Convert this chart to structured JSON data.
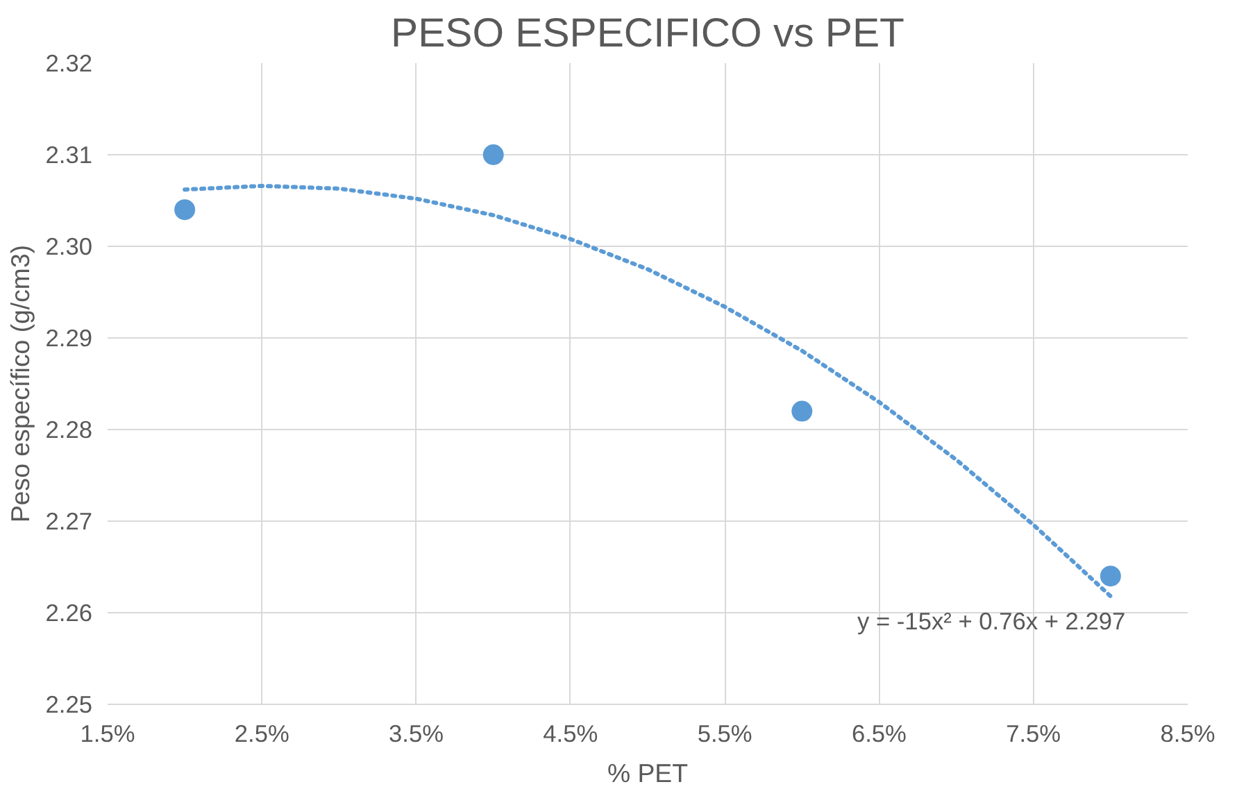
{
  "chart_data": {
    "type": "scatter",
    "title": "PESO ESPECIFICO vs PET",
    "xlabel": "% PET",
    "ylabel": "Peso específico (g/cm3)",
    "xlim": [
      0.015,
      0.085
    ],
    "xticks": [
      {
        "value": 0.015,
        "label": "1.5%"
      },
      {
        "value": 0.025,
        "label": "2.5%"
      },
      {
        "value": 0.035,
        "label": "3.5%"
      },
      {
        "value": 0.045,
        "label": "4.5%"
      },
      {
        "value": 0.055,
        "label": "5.5%"
      },
      {
        "value": 0.065,
        "label": "6.5%"
      },
      {
        "value": 0.075,
        "label": "7.5%"
      },
      {
        "value": 0.085,
        "label": "8.5%"
      }
    ],
    "ylim": [
      2.25,
      2.32
    ],
    "yticks": [
      {
        "value": 2.25,
        "label": "2.25"
      },
      {
        "value": 2.26,
        "label": "2.26"
      },
      {
        "value": 2.27,
        "label": "2.27"
      },
      {
        "value": 2.28,
        "label": "2.28"
      },
      {
        "value": 2.29,
        "label": "2.29"
      },
      {
        "value": 2.3,
        "label": "2.30"
      },
      {
        "value": 2.31,
        "label": "2.31"
      },
      {
        "value": 2.32,
        "label": "2.32"
      }
    ],
    "grid": true,
    "series": [
      {
        "type": "scatter",
        "color": "#5b9bd5",
        "marker": "circle",
        "x": [
          0.02,
          0.04,
          0.06,
          0.08
        ],
        "values": [
          2.304,
          2.31,
          2.282,
          2.264
        ]
      },
      {
        "type": "line",
        "color": "#5b9bd5",
        "line_style": "dotted",
        "marker": "none",
        "x": [
          0.02,
          0.025,
          0.03,
          0.035,
          0.04,
          0.045,
          0.05,
          0.055,
          0.06,
          0.065,
          0.07,
          0.075,
          0.08
        ],
        "values": [
          2.3062,
          2.3066,
          2.3063,
          2.3052,
          2.3034,
          2.3008,
          2.2975,
          2.2934,
          2.2886,
          2.283,
          2.2767,
          2.2696,
          2.2618
        ]
      }
    ],
    "annotations": [
      "y = -15x² + 0.76x + 2.297"
    ]
  }
}
